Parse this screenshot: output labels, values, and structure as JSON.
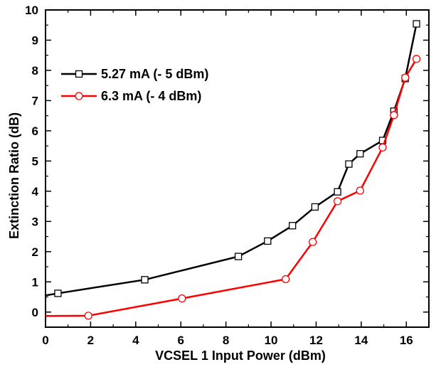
{
  "chart_data": {
    "type": "line",
    "xlabel": "VCSEL 1 Input Power (dBm)",
    "ylabel": "Extinction Ratio (dB)",
    "xlim": [
      0,
      17
    ],
    "ylim": [
      -0.5,
      10
    ],
    "x_ticks": [
      0,
      2,
      4,
      6,
      8,
      10,
      12,
      14,
      16
    ],
    "y_ticks": [
      0,
      1,
      2,
      3,
      4,
      5,
      6,
      7,
      8,
      9,
      10
    ],
    "legend_position": "upper-left",
    "grid": false,
    "series": [
      {
        "name": "5.27 mA (- 5 dBm)",
        "color": "#000000",
        "marker": "square",
        "x": [
          0.0,
          0.55,
          4.4,
          8.55,
          9.85,
          10.95,
          11.95,
          12.95,
          13.45,
          13.95,
          14.95,
          15.45,
          15.95,
          16.45
        ],
        "y": [
          0.55,
          0.62,
          1.07,
          1.84,
          2.35,
          2.86,
          3.48,
          3.98,
          4.9,
          5.24,
          5.68,
          6.65,
          7.73,
          9.54
        ]
      },
      {
        "name": "6.3 mA (- 4 dBm)",
        "color": "#ff0000",
        "marker": "circle",
        "x": [
          0.0,
          1.9,
          6.05,
          10.65,
          11.85,
          12.95,
          13.95,
          14.95,
          15.45,
          15.95,
          16.45
        ],
        "y": [
          -0.13,
          -0.12,
          0.45,
          1.09,
          2.32,
          3.67,
          4.02,
          5.45,
          6.52,
          7.76,
          8.38
        ]
      }
    ]
  }
}
